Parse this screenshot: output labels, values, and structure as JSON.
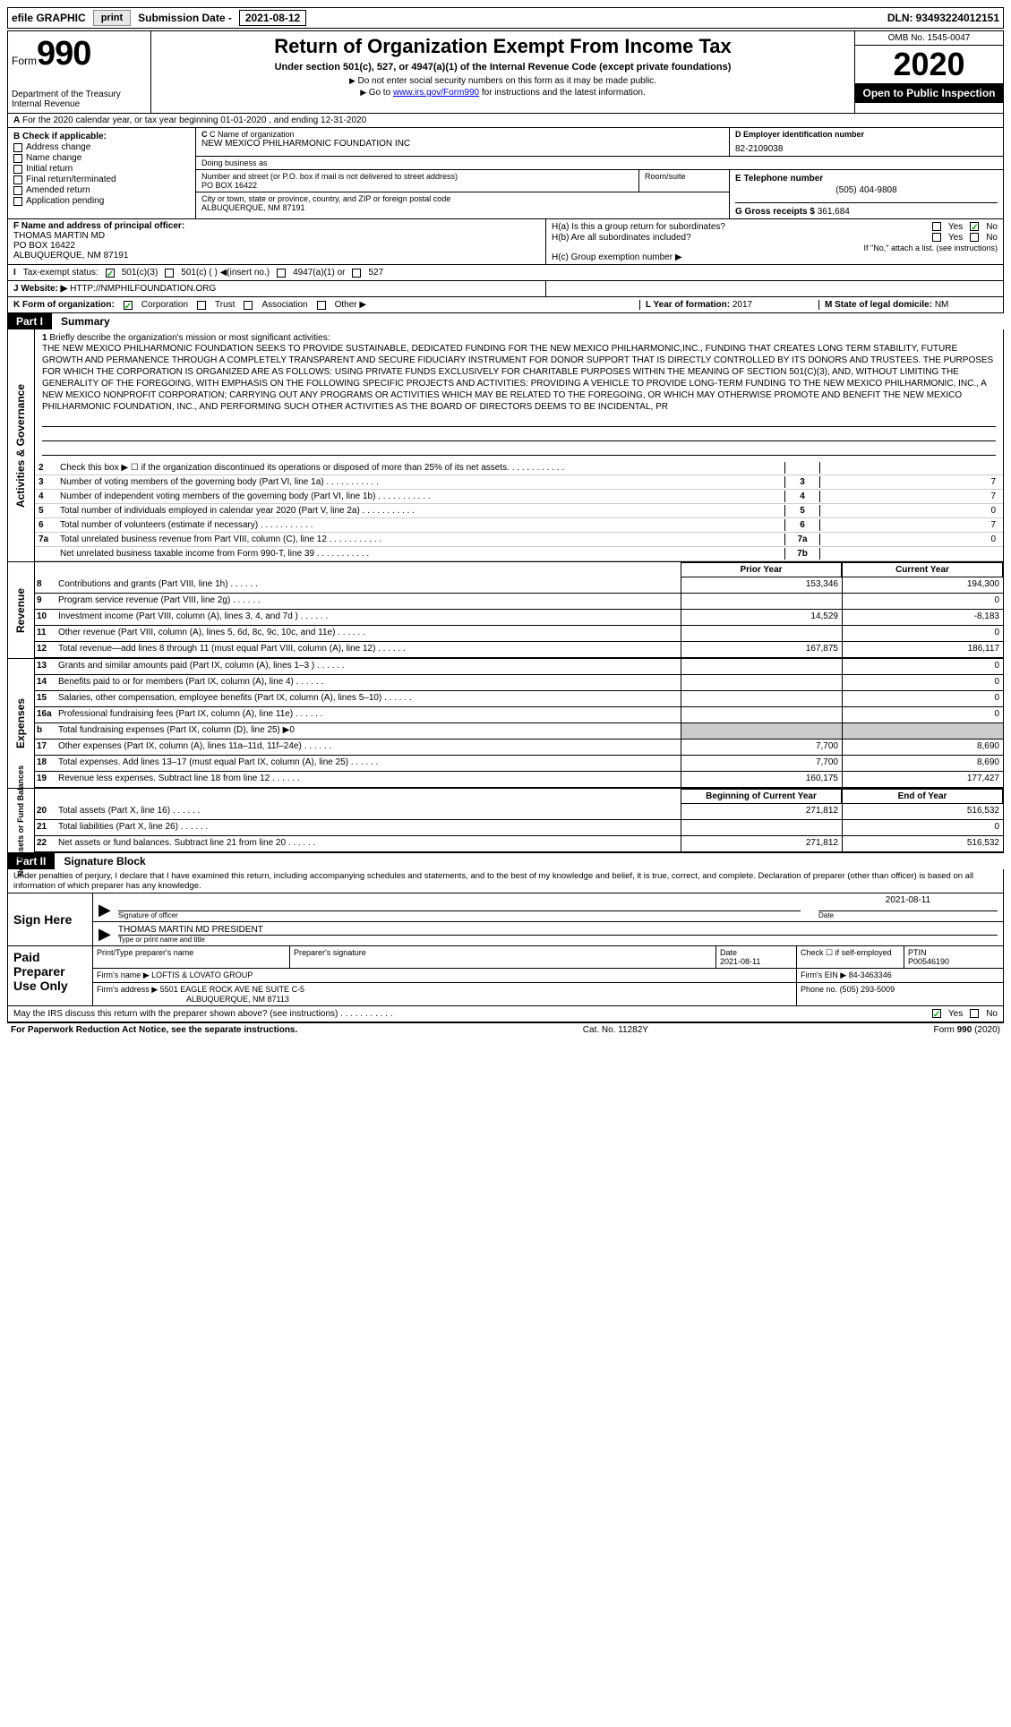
{
  "topbar": {
    "efile": "efile GRAPHIC",
    "print": "print",
    "sub_label": "Submission Date -",
    "sub_date": "2021-08-12",
    "dln_label": "DLN:",
    "dln": "93493224012151"
  },
  "header": {
    "form_word": "Form",
    "form_num": "990",
    "dept": "Department of the Treasury\nInternal Revenue",
    "title": "Return of Organization Exempt From Income Tax",
    "subtitle": "Under section 501(c), 527, or 4947(a)(1) of the Internal Revenue Code (except private foundations)",
    "instr1": "Do not enter social security numbers on this form as it may be made public.",
    "instr2_pre": "Go to ",
    "instr2_link": "www.irs.gov/Form990",
    "instr2_post": " for instructions and the latest information.",
    "omb": "OMB No. 1545-0047",
    "year": "2020",
    "open": "Open to Public Inspection"
  },
  "rowa": "For the 2020 calendar year, or tax year beginning 01-01-2020   , and ending 12-31-2020",
  "b": {
    "label": "B Check if applicable:",
    "opts": [
      "Address change",
      "Name change",
      "Initial return",
      "Final return/terminated",
      "Amended return",
      "Application pending"
    ]
  },
  "c": {
    "label": "C Name of organization",
    "name": "NEW MEXICO PHILHARMONIC FOUNDATION INC",
    "dba_label": "Doing business as",
    "addr_label": "Number and street (or P.O. box if mail is not delivered to street address)",
    "addr": "PO BOX 16422",
    "room_label": "Room/suite",
    "city_label": "City or town, state or province, country, and ZIP or foreign postal code",
    "city": "ALBUQUERQUE, NM  87191"
  },
  "d": {
    "label": "D Employer identification number",
    "ein": "82-2109038"
  },
  "e": {
    "label": "E Telephone number",
    "phone": "(505) 404-9808"
  },
  "g": {
    "label": "G Gross receipts $",
    "val": "361,684"
  },
  "f": {
    "label": "F  Name and address of principal officer:",
    "name": "THOMAS MARTIN MD",
    "addr1": "PO BOX 16422",
    "addr2": "ALBUQUERQUE, NM  87191"
  },
  "h": {
    "ha": "H(a)  Is this a group return for subordinates?",
    "hb": "H(b)  Are all subordinates included?",
    "hb_note": "If \"No,\" attach a list. (see instructions)",
    "hc": "H(c)  Group exemption number ▶",
    "yes": "Yes",
    "no": "No"
  },
  "i": {
    "label": "Tax-exempt status:",
    "o1": "501(c)(3)",
    "o2": "501(c) (   ) ◀(insert no.)",
    "o3": "4947(a)(1) or",
    "o4": "527"
  },
  "j": {
    "label": "Website: ▶",
    "val": "HTTP://NMPHILFOUNDATION.ORG"
  },
  "k": {
    "label": "K Form of organization:",
    "o1": "Corporation",
    "o2": "Trust",
    "o3": "Association",
    "o4": "Other ▶",
    "l_label": "L Year of formation:",
    "l_val": "2017",
    "m_label": "M State of legal domicile:",
    "m_val": "NM"
  },
  "part1": {
    "label": "Part I",
    "title": "Summary"
  },
  "mission": {
    "num": "1",
    "label": "Briefly describe the organization's mission or most significant activities:",
    "text": "THE NEW MEXICO PHILHARMONIC FOUNDATION SEEKS TO PROVIDE SUSTAINABLE, DEDICATED FUNDING FOR THE NEW MEXICO PHILHARMONIC,INC., FUNDING THAT CREATES LONG TERM STABILITY, FUTURE GROWTH AND PERMANENCE THROUGH A COMPLETELY TRANSPARENT AND SECURE FIDUCIARY INSTRUMENT FOR DONOR SUPPORT THAT IS DIRECTLY CONTROLLED BY ITS DONORS AND TRUSTEES. THE PURPOSES FOR WHICH THE CORPORATION IS ORGANIZED ARE AS FOLLOWS: USING PRIVATE FUNDS EXCLUSIVELY FOR CHARITABLE PURPOSES WITHIN THE MEANING OF SECTION 501(C)(3), AND, WITHOUT LIMITING THE GENERALITY OF THE FOREGOING, WITH EMPHASIS ON THE FOLLOWING SPECIFIC PROJECTS AND ACTIVITIES: PROVIDING A VEHICLE TO PROVIDE LONG-TERM FUNDING TO THE NEW MEXICO PHILHARMONIC, INC., A NEW MEXICO NONPROFIT CORPORATION; CARRYING OUT ANY PROGRAMS OR ACTIVITIES WHICH MAY BE RELATED TO THE FOREGOING, OR WHICH MAY OTHERWISE PROMOTE AND BENEFIT THE NEW MEXICO PHILHARMONIC FOUNDATION, INC., AND PERFORMING SUCH OTHER ACTIVITIES AS THE BOARD OF DIRECTORS DEEMS TO BE INCIDENTAL, PR"
  },
  "gov_lines": [
    {
      "n": "2",
      "t": "Check this box ▶ ☐  if the organization discontinued its operations or disposed of more than 25% of its net assets.",
      "box": "",
      "v": ""
    },
    {
      "n": "3",
      "t": "Number of voting members of the governing body (Part VI, line 1a)",
      "box": "3",
      "v": "7"
    },
    {
      "n": "4",
      "t": "Number of independent voting members of the governing body (Part VI, line 1b)",
      "box": "4",
      "v": "7"
    },
    {
      "n": "5",
      "t": "Total number of individuals employed in calendar year 2020 (Part V, line 2a)",
      "box": "5",
      "v": "0"
    },
    {
      "n": "6",
      "t": "Total number of volunteers (estimate if necessary)",
      "box": "6",
      "v": "7"
    },
    {
      "n": "7a",
      "t": "Total unrelated business revenue from Part VIII, column (C), line 12",
      "box": "7a",
      "v": "0"
    },
    {
      "n": "",
      "t2": "Net unrelated business taxable income from Form 990-T, line 39",
      "box": "7b",
      "v": ""
    }
  ],
  "col_hdrs": {
    "prior": "Prior Year",
    "curr": "Current Year"
  },
  "revenue": [
    {
      "n": "8",
      "t": "Contributions and grants (Part VIII, line 1h)",
      "p": "153,346",
      "c": "194,300"
    },
    {
      "n": "9",
      "t": "Program service revenue (Part VIII, line 2g)",
      "p": "",
      "c": "0"
    },
    {
      "n": "10",
      "t": "Investment income (Part VIII, column (A), lines 3, 4, and 7d )",
      "p": "14,529",
      "c": "-8,183"
    },
    {
      "n": "11",
      "t": "Other revenue (Part VIII, column (A), lines 5, 6d, 8c, 9c, 10c, and 11e)",
      "p": "",
      "c": "0"
    },
    {
      "n": "12",
      "t": "Total revenue—add lines 8 through 11 (must equal Part VIII, column (A), line 12)",
      "p": "167,875",
      "c": "186,117"
    }
  ],
  "expenses": [
    {
      "n": "13",
      "t": "Grants and similar amounts paid (Part IX, column (A), lines 1–3 )",
      "p": "",
      "c": "0"
    },
    {
      "n": "14",
      "t": "Benefits paid to or for members (Part IX, column (A), line 4)",
      "p": "",
      "c": "0"
    },
    {
      "n": "15",
      "t": "Salaries, other compensation, employee benefits (Part IX, column (A), lines 5–10)",
      "p": "",
      "c": "0"
    },
    {
      "n": "16a",
      "t": "Professional fundraising fees (Part IX, column (A), line 11e)",
      "p": "",
      "c": "0"
    },
    {
      "n": "b",
      "t": "Total fundraising expenses (Part IX, column (D), line 25) ▶0",
      "gray": true
    },
    {
      "n": "17",
      "t": "Other expenses (Part IX, column (A), lines 11a–11d, 11f–24e)",
      "p": "7,700",
      "c": "8,690"
    },
    {
      "n": "18",
      "t": "Total expenses. Add lines 13–17 (must equal Part IX, column (A), line 25)",
      "p": "7,700",
      "c": "8,690"
    },
    {
      "n": "19",
      "t": "Revenue less expenses. Subtract line 18 from line 12",
      "p": "160,175",
      "c": "177,427"
    }
  ],
  "net_hdrs": {
    "beg": "Beginning of Current Year",
    "end": "End of Year"
  },
  "netassets": [
    {
      "n": "20",
      "t": "Total assets (Part X, line 16)",
      "p": "271,812",
      "c": "516,532"
    },
    {
      "n": "21",
      "t": "Total liabilities (Part X, line 26)",
      "p": "",
      "c": "0"
    },
    {
      "n": "22",
      "t": "Net assets or fund balances. Subtract line 21 from line 20",
      "p": "271,812",
      "c": "516,532"
    }
  ],
  "gov_side": "Activities & Governance",
  "rev_side": "Revenue",
  "exp_side": "Expenses",
  "net_side": "Net Assets or Fund Balances",
  "part2": {
    "label": "Part II",
    "title": "Signature Block"
  },
  "sig": {
    "decl": "Under penalties of perjury, I declare that I have examined this return, including accompanying schedules and statements, and to the best of my knowledge and belief, it is true, correct, and complete. Declaration of preparer (other than officer) is based on all information of which preparer has any knowledge.",
    "sign_here": "Sign Here",
    "sig_of_officer": "Signature of officer",
    "date_label": "Date",
    "date": "2021-08-11",
    "name_title": "THOMAS MARTIN MD  PRESIDENT",
    "type_label": "Type or print name and title"
  },
  "prep": {
    "label": "Paid Preparer Use Only",
    "h1": "Print/Type preparer's name",
    "h2": "Preparer's signature",
    "h3": "Date",
    "date": "2021-08-11",
    "h4": "Check ☐ if self-employed",
    "h5": "PTIN",
    "ptin": "P00546190",
    "firm_name_l": "Firm's name    ▶",
    "firm_name": "LOFTIS & LOVATO GROUP",
    "firm_ein_l": "Firm's EIN ▶",
    "firm_ein": "84-3463346",
    "firm_addr_l": "Firm's address ▶",
    "firm_addr1": "5501 EAGLE ROCK AVE NE SUITE C-5",
    "firm_addr2": "ALBUQUERQUE, NM  87113",
    "phone_l": "Phone no.",
    "phone": "(505) 293-5009"
  },
  "discuss": {
    "text": "May the IRS discuss this return with the preparer shown above? (see instructions)",
    "yes": "Yes",
    "no": "No"
  },
  "footer": {
    "left": "For Paperwork Reduction Act Notice, see the separate instructions.",
    "mid": "Cat. No. 11282Y",
    "right": "Form 990 (2020)"
  }
}
